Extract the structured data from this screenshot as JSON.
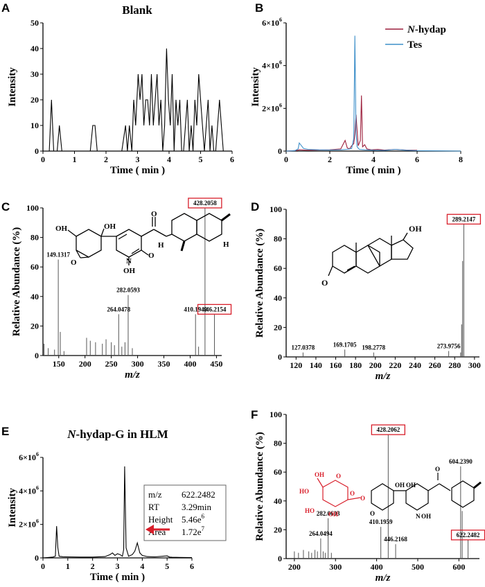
{
  "colors": {
    "nhydap": "#9c1f3c",
    "tes": "#3d8fc9",
    "line": "#000000",
    "highlight": "#d81e2a",
    "glucuronide": "#d81e2a"
  },
  "chart_data": [
    {
      "id": "A",
      "type": "line",
      "panel_label": "A",
      "title": "Blank",
      "xlabel": "Time ( min )",
      "ylabel": "Intensity",
      "xlim": [
        0,
        6
      ],
      "ylim": [
        0,
        50
      ],
      "xticks": [
        "0",
        "1",
        "2",
        "3",
        "4",
        "5",
        "6"
      ],
      "yticks": [
        "0",
        "10",
        "20",
        "30",
        "40",
        "50"
      ],
      "series": [
        {
          "name": "Blank",
          "x": [
            0,
            0.1,
            0.2,
            0.27,
            0.34,
            0.45,
            0.52,
            0.6,
            0.7,
            0.8,
            0.9,
            1.0,
            1.1,
            1.2,
            1.3,
            1.4,
            1.5,
            1.58,
            1.65,
            1.72,
            1.8,
            1.9,
            2.0,
            2.1,
            2.2,
            2.3,
            2.4,
            2.5,
            2.62,
            2.68,
            2.74,
            2.82,
            2.88,
            2.94,
            3.02,
            3.08,
            3.14,
            3.2,
            3.26,
            3.32,
            3.38,
            3.44,
            3.5,
            3.56,
            3.62,
            3.68,
            3.74,
            3.8,
            3.86,
            3.92,
            3.98,
            4.04,
            4.1,
            4.16,
            4.22,
            4.28,
            4.34,
            4.4,
            4.46,
            4.52,
            4.58,
            4.64,
            4.7,
            4.76,
            4.82,
            4.88,
            4.94,
            5.0,
            5.06,
            5.12,
            5.18,
            5.24,
            5.3,
            5.36,
            5.42,
            5.48,
            5.54,
            5.6,
            5.66,
            5.72,
            5.8,
            5.9,
            6.0
          ],
          "y": [
            0,
            0,
            0,
            20,
            0,
            0,
            10,
            0,
            0,
            0,
            0,
            0,
            0,
            0,
            0,
            0,
            0,
            10,
            10,
            0,
            0,
            0,
            0,
            0,
            0,
            0,
            0,
            0,
            10,
            0,
            10,
            0,
            20,
            10,
            30,
            20,
            30,
            10,
            20,
            20,
            10,
            30,
            10,
            20,
            30,
            10,
            20,
            0,
            10,
            40,
            20,
            10,
            30,
            0,
            20,
            10,
            20,
            0,
            0,
            10,
            20,
            0,
            10,
            0,
            20,
            10,
            30,
            20,
            10,
            0,
            10,
            20,
            0,
            10,
            0,
            0,
            10,
            20,
            10,
            0,
            0,
            0,
            0
          ]
        }
      ]
    },
    {
      "id": "B",
      "type": "line",
      "panel_label": "B",
      "title": "",
      "xlabel": "Time ( min )",
      "ylabel": "Intensity",
      "xlim": [
        0,
        8
      ],
      "ylim": [
        0,
        6000000
      ],
      "xticks": [
        "0",
        "2",
        "4",
        "6",
        "8"
      ],
      "yticks": [
        {
          "base": "0",
          "exp": ""
        },
        {
          "base": "2×10",
          "exp": "6"
        },
        {
          "base": "4×10",
          "exp": "6"
        },
        {
          "base": "6×10",
          "exp": "6"
        }
      ],
      "legend": [
        {
          "label": "N-hydap",
          "italic_part": "N",
          "rest": "-hydap"
        },
        {
          "label": "Tes"
        }
      ],
      "series": [
        {
          "name": "N-hydap",
          "x": [
            0,
            0.5,
            0.6,
            1.0,
            1.5,
            2.0,
            2.5,
            2.7,
            2.8,
            2.9,
            3.0,
            3.1,
            3.15,
            3.2,
            3.3,
            3.4,
            3.45,
            3.5,
            3.6,
            3.7,
            3.9,
            4.2,
            4.5,
            5.0,
            5.5,
            6.0
          ],
          "y": [
            0,
            30000,
            60000,
            40000,
            50000,
            60000,
            100000,
            500000,
            150000,
            100000,
            250000,
            350000,
            800000,
            1700000,
            250000,
            500000,
            2600000,
            200000,
            300000,
            100000,
            60000,
            80000,
            50000,
            80000,
            50000,
            40000
          ]
        },
        {
          "name": "Tes",
          "x": [
            0,
            0.4,
            0.55,
            0.6,
            0.7,
            0.8,
            1.0,
            1.5,
            2.0,
            2.5,
            2.8,
            3.0,
            3.1,
            3.15,
            3.2,
            3.25,
            3.35,
            3.6,
            4.0,
            4.5,
            5.0,
            5.5,
            6.0,
            7.0,
            8.0
          ],
          "y": [
            0,
            20000,
            100000,
            380000,
            250000,
            120000,
            80000,
            60000,
            50000,
            60000,
            80000,
            120000,
            600000,
            5400000,
            900000,
            200000,
            80000,
            60000,
            40000,
            30000,
            80000,
            40000,
            20000,
            10000,
            0
          ]
        }
      ]
    },
    {
      "id": "C",
      "type": "bar",
      "panel_label": "C",
      "xlabel": "m/z",
      "ylabel": "Relative Abundance (%)",
      "xlim": [
        120,
        460
      ],
      "ylim": [
        0,
        100
      ],
      "xticks": [
        "150",
        "200",
        "250",
        "300",
        "350",
        "400",
        "450"
      ],
      "yticks": [
        "0",
        "20",
        "40",
        "60",
        "80",
        "100"
      ],
      "peaks": [
        {
          "mz": 122,
          "rel": 8
        },
        {
          "mz": 130,
          "rel": 5
        },
        {
          "mz": 142,
          "rel": 4
        },
        {
          "mz": 149.1317,
          "rel": 65
        },
        {
          "mz": 153,
          "rel": 16
        },
        {
          "mz": 160,
          "rel": 3
        },
        {
          "mz": 203,
          "rel": 12
        },
        {
          "mz": 210,
          "rel": 10
        },
        {
          "mz": 220,
          "rel": 9
        },
        {
          "mz": 233,
          "rel": 8
        },
        {
          "mz": 240,
          "rel": 11
        },
        {
          "mz": 250,
          "rel": 9
        },
        {
          "mz": 256,
          "rel": 7
        },
        {
          "mz": 264.0478,
          "rel": 28
        },
        {
          "mz": 270,
          "rel": 6
        },
        {
          "mz": 276,
          "rel": 9
        },
        {
          "mz": 282.0593,
          "rel": 41
        },
        {
          "mz": 290,
          "rel": 5
        },
        {
          "mz": 410.1949,
          "rel": 28
        },
        {
          "mz": 416,
          "rel": 6
        },
        {
          "mz": 428.2058,
          "rel": 100
        },
        {
          "mz": 446.2154,
          "rel": 28
        }
      ],
      "labels": [
        {
          "mz": 149.1317,
          "text": "149.1317",
          "boxed": false
        },
        {
          "mz": 264.0478,
          "text": "264.0478",
          "boxed": false
        },
        {
          "mz": 282.0593,
          "text": "282.0593",
          "boxed": false
        },
        {
          "mz": 410.1949,
          "text": "410.1949",
          "boxed": false
        },
        {
          "mz": 428.2058,
          "text": "428.2058",
          "boxed": true
        },
        {
          "mz": 446.2154,
          "text": "446.2154",
          "boxed": true
        }
      ],
      "structure": {
        "atoms": [
          "OH",
          "OH",
          "O",
          "N",
          "OH",
          "O",
          "H",
          "H",
          "O"
        ]
      }
    },
    {
      "id": "D",
      "type": "bar",
      "panel_label": "D",
      "xlabel": "m/z",
      "ylabel": "Relative Abundance (%)",
      "xlim": [
        110,
        305
      ],
      "ylim": [
        0,
        100
      ],
      "xticks": [
        "120",
        "140",
        "160",
        "180",
        "200",
        "220",
        "240",
        "260",
        "280",
        "300"
      ],
      "yticks": [
        "0",
        "20",
        "40",
        "60",
        "80",
        "100"
      ],
      "peaks": [
        {
          "mz": 127.0378,
          "rel": 3
        },
        {
          "mz": 169.1705,
          "rel": 5
        },
        {
          "mz": 198.2778,
          "rel": 3
        },
        {
          "mz": 273.9756,
          "rel": 4
        },
        {
          "mz": 286,
          "rel": 3
        },
        {
          "mz": 287,
          "rel": 22
        },
        {
          "mz": 288,
          "rel": 65
        },
        {
          "mz": 289.2147,
          "rel": 90
        }
      ],
      "labels": [
        {
          "mz": 127.0378,
          "text": "127.0378",
          "boxed": false
        },
        {
          "mz": 169.1705,
          "text": "169.1705",
          "boxed": false
        },
        {
          "mz": 198.2778,
          "text": "198.2778",
          "boxed": false
        },
        {
          "mz": 273.9756,
          "text": "273.9756",
          "boxed": false
        },
        {
          "mz": 289.2147,
          "text": "289.2147",
          "boxed": true
        }
      ],
      "structure": {
        "atoms": [
          "OH",
          "O"
        ]
      }
    },
    {
      "id": "E",
      "type": "line",
      "panel_label": "E",
      "title": "N-hydap-G in HLM",
      "title_italic": "N",
      "title_rest": "-hydap-G in HLM",
      "xlabel": "Time ( min )",
      "ylabel": "Intensity",
      "xlim": [
        0,
        6
      ],
      "ylim": [
        0,
        6000000
      ],
      "xticks": [
        "0",
        "1",
        "2",
        "3",
        "4",
        "5",
        "6"
      ],
      "yticks": [
        {
          "base": "0",
          "exp": ""
        },
        {
          "base": "2×10",
          "exp": "6"
        },
        {
          "base": "4×10",
          "exp": "6"
        },
        {
          "base": "6×10",
          "exp": "6"
        }
      ],
      "infobox": [
        {
          "k": "m/z",
          "v": "622.2482",
          "sup": ""
        },
        {
          "k": "RT",
          "v": "3.29min",
          "sup": ""
        },
        {
          "k": "Height",
          "v": "5.46e",
          "sup": "6"
        },
        {
          "k": "Area",
          "v": "1.72e",
          "sup": "7"
        }
      ],
      "series": [
        {
          "name": "N-hydap-G",
          "x": [
            0,
            0.4,
            0.5,
            0.55,
            0.6,
            0.65,
            0.8,
            1.0,
            1.5,
            2.0,
            2.5,
            2.7,
            2.8,
            2.9,
            3.0,
            3.1,
            3.2,
            3.25,
            3.29,
            3.35,
            3.45,
            3.6,
            3.7,
            3.8,
            3.9,
            4.0,
            4.2,
            4.5,
            5.0,
            5.1,
            5.2,
            5.5,
            6.0
          ],
          "y": [
            0,
            50000,
            100000,
            1900000,
            600000,
            100000,
            70000,
            60000,
            50000,
            50000,
            80000,
            200000,
            300000,
            150000,
            250000,
            200000,
            100000,
            500000,
            5460000,
            600000,
            100000,
            200000,
            400000,
            900000,
            300000,
            150000,
            80000,
            60000,
            120000,
            50000,
            40000,
            30000,
            20000
          ]
        }
      ]
    },
    {
      "id": "F",
      "type": "bar",
      "panel_label": "F",
      "xlabel": "m/z",
      "ylabel": "Relative Abundance (%)",
      "xlim": [
        180,
        650
      ],
      "ylim": [
        0,
        100
      ],
      "xticks": [
        "200",
        "300",
        "400",
        "500",
        "600"
      ],
      "yticks": [
        "0",
        "20",
        "40",
        "60",
        "80",
        "100"
      ],
      "peaks": [
        {
          "mz": 200,
          "rel": 5
        },
        {
          "mz": 210,
          "rel": 4
        },
        {
          "mz": 222,
          "rel": 6
        },
        {
          "mz": 235,
          "rel": 5
        },
        {
          "mz": 242,
          "rel": 4
        },
        {
          "mz": 250,
          "rel": 6
        },
        {
          "mz": 256,
          "rel": 5
        },
        {
          "mz": 264.0494,
          "rel": 14
        },
        {
          "mz": 270,
          "rel": 5
        },
        {
          "mz": 275,
          "rel": 4
        },
        {
          "mz": 282.0603,
          "rel": 28
        },
        {
          "mz": 290,
          "rel": 4
        },
        {
          "mz": 410.1959,
          "rel": 22
        },
        {
          "mz": 428.2062,
          "rel": 86
        },
        {
          "mz": 446.2168,
          "rel": 10
        },
        {
          "mz": 604.239,
          "rel": 64
        },
        {
          "mz": 608,
          "rel": 33
        },
        {
          "mz": 622.2482,
          "rel": 13
        }
      ],
      "labels": [
        {
          "mz": 264.0494,
          "text": "264.0494",
          "boxed": false
        },
        {
          "mz": 282.0603,
          "text": "282.0603",
          "boxed": false
        },
        {
          "mz": 410.1959,
          "text": "410.1959",
          "boxed": false
        },
        {
          "mz": 428.2062,
          "text": "428.2062",
          "boxed": true
        },
        {
          "mz": 446.2168,
          "text": "446.2168",
          "boxed": false
        },
        {
          "mz": 604.239,
          "text": "604.2390",
          "boxed": false
        },
        {
          "mz": 622.2482,
          "text": "622.2482",
          "boxed": true
        }
      ],
      "structure": {
        "atoms": [
          "O",
          "OH",
          "HO",
          "HO",
          "OH",
          "O",
          "O",
          "OH",
          "O",
          "OH",
          "N",
          "OH",
          "O"
        ]
      }
    }
  ]
}
